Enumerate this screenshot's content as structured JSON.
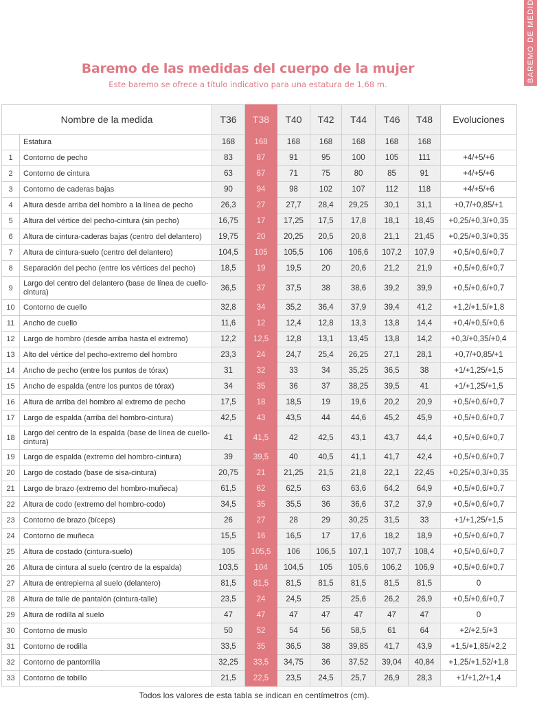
{
  "side_tab": "BAREMO DE MEDID",
  "title": "Baremo de las medidas del cuerpo de la mujer",
  "subtitle": "Este baremo se ofrece a título indicativo para una estatura de 1,68 m.",
  "table": {
    "header_name": "Nombre de la medida",
    "sizes": [
      "T36",
      "T38",
      "T40",
      "T42",
      "T44",
      "T46",
      "T48"
    ],
    "header_evol": "Evoluciones",
    "highlight_color": "#e07a80",
    "rows": [
      {
        "num": "",
        "name": "Estatura",
        "values": [
          "168",
          "168",
          "168",
          "168",
          "168",
          "168",
          "168"
        ],
        "evol": ""
      },
      {
        "num": "1",
        "name": "Contorno de pecho",
        "values": [
          "83",
          "87",
          "91",
          "95",
          "100",
          "105",
          "111"
        ],
        "evol": "+4/+5/+6"
      },
      {
        "num": "2",
        "name": "Contorno de cintura",
        "values": [
          "63",
          "67",
          "71",
          "75",
          "80",
          "85",
          "91"
        ],
        "evol": "+4/+5/+6"
      },
      {
        "num": "3",
        "name": "Contorno de caderas bajas",
        "values": [
          "90",
          "94",
          "98",
          "102",
          "107",
          "112",
          "118"
        ],
        "evol": "+4/+5/+6"
      },
      {
        "num": "4",
        "name": "Altura desde arriba del hombro a la línea de pecho",
        "values": [
          "26,3",
          "27",
          "27,7",
          "28,4",
          "29,25",
          "30,1",
          "31,1"
        ],
        "evol": "+0,7/+0,85/+1"
      },
      {
        "num": "5",
        "name": "Altura del vértice del pecho-cintura (sin pecho)",
        "values": [
          "16,75",
          "17",
          "17,25",
          "17,5",
          "17,8",
          "18,1",
          "18,45"
        ],
        "evol": "+0,25/+0,3/+0,35"
      },
      {
        "num": "6",
        "name": "Altura de cintura-caderas bajas (centro del delantero)",
        "values": [
          "19,75",
          "20",
          "20,25",
          "20,5",
          "20,8",
          "21,1",
          "21,45"
        ],
        "evol": "+0,25/+0,3/+0,35"
      },
      {
        "num": "7",
        "name": "Altura de cintura-suelo (centro del delantero)",
        "values": [
          "104,5",
          "105",
          "105,5",
          "106",
          "106,6",
          "107,2",
          "107,9"
        ],
        "evol": "+0,5/+0,6/+0,7"
      },
      {
        "num": "8",
        "name": "Separación del pecho (entre los vértices del pecho)",
        "values": [
          "18,5",
          "19",
          "19,5",
          "20",
          "20,6",
          "21,2",
          "21,9"
        ],
        "evol": "+0,5/+0,6/+0,7"
      },
      {
        "num": "9",
        "name": "Largo del centro del delantero (base de línea de cuello-cintura)",
        "values": [
          "36,5",
          "37",
          "37,5",
          "38",
          "38,6",
          "39,2",
          "39,9"
        ],
        "evol": "+0,5/+0,6/+0,7",
        "tall": true
      },
      {
        "num": "10",
        "name": "Contorno de cuello",
        "values": [
          "32,8",
          "34",
          "35,2",
          "36,4",
          "37,9",
          "39,4",
          "41,2"
        ],
        "evol": "+1,2/+1,5/+1,8"
      },
      {
        "num": "11",
        "name": "Ancho de cuello",
        "values": [
          "11,6",
          "12",
          "12,4",
          "12,8",
          "13,3",
          "13,8",
          "14,4"
        ],
        "evol": "+0,4/+0,5/+0,6"
      },
      {
        "num": "12",
        "name": "Largo de hombro (desde arriba hasta el extremo)",
        "values": [
          "12,2",
          "12,5",
          "12,8",
          "13,1",
          "13,45",
          "13,8",
          "14,2"
        ],
        "evol": "+0,3/+0,35/+0,4"
      },
      {
        "num": "13",
        "name": "Alto del vértice del pecho-extremo del hombro",
        "values": [
          "23,3",
          "24",
          "24,7",
          "25,4",
          "26,25",
          "27,1",
          "28,1"
        ],
        "evol": "+0,7/+0,85/+1"
      },
      {
        "num": "14",
        "name": "Ancho de pecho (entre los puntos de tórax)",
        "values": [
          "31",
          "32",
          "33",
          "34",
          "35,25",
          "36,5",
          "38"
        ],
        "evol": "+1/+1,25/+1,5"
      },
      {
        "num": "15",
        "name": "Ancho de espalda (entre los puntos de tórax)",
        "values": [
          "34",
          "35",
          "36",
          "37",
          "38,25",
          "39,5",
          "41"
        ],
        "evol": "+1/+1,25/+1,5"
      },
      {
        "num": "16",
        "name": "Altura de arriba del hombro al extremo de pecho",
        "values": [
          "17,5",
          "18",
          "18,5",
          "19",
          "19,6",
          "20,2",
          "20,9"
        ],
        "evol": "+0,5/+0,6/+0,7"
      },
      {
        "num": "17",
        "name": "Largo de espalda (arriba del hombro-cintura)",
        "values": [
          "42,5",
          "43",
          "43,5",
          "44",
          "44,6",
          "45,2",
          "45,9"
        ],
        "evol": "+0,5/+0,6/+0,7"
      },
      {
        "num": "18",
        "name": "Largo del centro de la espalda (base de línea de cuello-cintura)",
        "values": [
          "41",
          "41,5",
          "42",
          "42,5",
          "43,1",
          "43,7",
          "44,4"
        ],
        "evol": "+0,5/+0,6/+0,7",
        "tall": true
      },
      {
        "num": "19",
        "name": "Largo de espalda (extremo del hombro-cintura)",
        "values": [
          "39",
          "39,5",
          "40",
          "40,5",
          "41,1",
          "41,7",
          "42,4"
        ],
        "evol": "+0,5/+0,6/+0,7"
      },
      {
        "num": "20",
        "name": "Largo de costado (base de sisa-cintura)",
        "values": [
          "20,75",
          "21",
          "21,25",
          "21,5",
          "21,8",
          "22,1",
          "22,45"
        ],
        "evol": "+0,25/+0,3/+0,35"
      },
      {
        "num": "21",
        "name": "Largo de brazo (extremo del hombro-muñeca)",
        "values": [
          "61,5",
          "62",
          "62,5",
          "63",
          "63,6",
          "64,2",
          "64,9"
        ],
        "evol": "+0,5/+0,6/+0,7"
      },
      {
        "num": "22",
        "name": "Altura de codo (extremo del hombro-codo)",
        "values": [
          "34,5",
          "35",
          "35,5",
          "36",
          "36,6",
          "37,2",
          "37,9"
        ],
        "evol": "+0,5/+0,6/+0,7"
      },
      {
        "num": "23",
        "name": "Contorno de brazo (bíceps)",
        "values": [
          "26",
          "27",
          "28",
          "29",
          "30,25",
          "31,5",
          "33"
        ],
        "evol": "+1/+1,25/+1,5"
      },
      {
        "num": "24",
        "name": "Contorno de muñeca",
        "values": [
          "15,5",
          "16",
          "16,5",
          "17",
          "17,6",
          "18,2",
          "18,9"
        ],
        "evol": "+0,5/+0,6/+0,7"
      },
      {
        "num": "25",
        "name": "Altura de costado (cintura-suelo)",
        "values": [
          "105",
          "105,5",
          "106",
          "106,5",
          "107,1",
          "107,7",
          "108,4"
        ],
        "evol": "+0,5/+0,6/+0,7"
      },
      {
        "num": "26",
        "name": "Altura de cintura al suelo (centro de la espalda)",
        "values": [
          "103,5",
          "104",
          "104,5",
          "105",
          "105,6",
          "106,2",
          "106,9"
        ],
        "evol": "+0,5/+0,6/+0,7"
      },
      {
        "num": "27",
        "name": "Altura de entrepierna al suelo (delantero)",
        "values": [
          "81,5",
          "81,5",
          "81,5",
          "81,5",
          "81,5",
          "81,5",
          "81,5"
        ],
        "evol": "0"
      },
      {
        "num": "28",
        "name": "Altura de talle de pantalón (cintura-talle)",
        "values": [
          "23,5",
          "24",
          "24,5",
          "25",
          "25,6",
          "26,2",
          "26,9"
        ],
        "evol": "+0,5/+0,6/+0,7"
      },
      {
        "num": "29",
        "name": "Altura de rodilla al suelo",
        "values": [
          "47",
          "47",
          "47",
          "47",
          "47",
          "47",
          "47"
        ],
        "evol": "0"
      },
      {
        "num": "30",
        "name": "Contorno de muslo",
        "values": [
          "50",
          "52",
          "54",
          "56",
          "58,5",
          "61",
          "64"
        ],
        "evol": "+2/+2,5/+3"
      },
      {
        "num": "31",
        "name": "Contorno de rodilla",
        "values": [
          "33,5",
          "35",
          "36,5",
          "38",
          "39,85",
          "41,7",
          "43,9"
        ],
        "evol": "+1,5/+1,85/+2,2"
      },
      {
        "num": "32",
        "name": "Contorno de pantorrilla",
        "values": [
          "32,25",
          "33,5",
          "34,75",
          "36",
          "37,52",
          "39,04",
          "40,84"
        ],
        "evol": "+1,25/+1,52/+1,8"
      },
      {
        "num": "33",
        "name": "Contorno de tobillo",
        "values": [
          "21,5",
          "22,5",
          "23,5",
          "24,5",
          "25,7",
          "26,9",
          "28,3"
        ],
        "evol": "+1/+1,2/+1,4"
      }
    ]
  },
  "footer": "Todos los valores de esta tabla se indican en centímetros (cm)."
}
